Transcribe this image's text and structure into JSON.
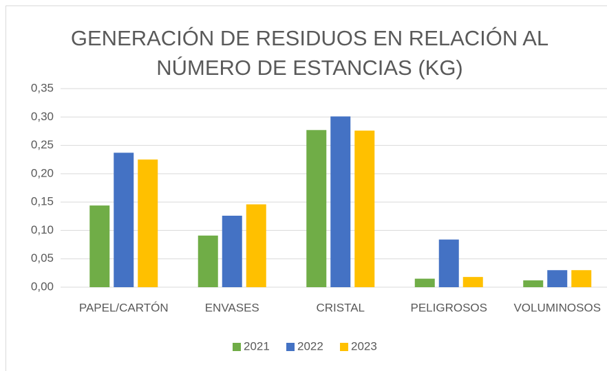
{
  "chart_data": {
    "type": "bar",
    "title": [
      "GENERACIÓN DE RESIDUOS EN RELACIÓN AL",
      "NÚMERO DE ESTANCIAS (KG)"
    ],
    "categories": [
      "PAPEL/CARTÓN",
      "ENVASES",
      "CRISTAL",
      "PELIGROSOS",
      "VOLUMINOSOS"
    ],
    "series": [
      {
        "name": "2021",
        "color": "#70ad47",
        "values": [
          0.144,
          0.091,
          0.277,
          0.015,
          0.012
        ]
      },
      {
        "name": "2022",
        "color": "#4472c4",
        "values": [
          0.237,
          0.126,
          0.301,
          0.084,
          0.03
        ]
      },
      {
        "name": "2023",
        "color": "#ffc000",
        "values": [
          0.225,
          0.146,
          0.276,
          0.018,
          0.03
        ]
      }
    ],
    "ylim": [
      0,
      0.35
    ],
    "yticks": [
      {
        "value": 0,
        "label": "0,00"
      },
      {
        "value": 0.05,
        "label": "0,05"
      },
      {
        "value": 0.1,
        "label": "0,10"
      },
      {
        "value": 0.15,
        "label": "0,15"
      },
      {
        "value": 0.2,
        "label": "0,20"
      },
      {
        "value": 0.25,
        "label": "0,25"
      },
      {
        "value": 0.3,
        "label": "0,30"
      },
      {
        "value": 0.35,
        "label": "0,35"
      }
    ],
    "grid": true,
    "legend": "bottom"
  }
}
